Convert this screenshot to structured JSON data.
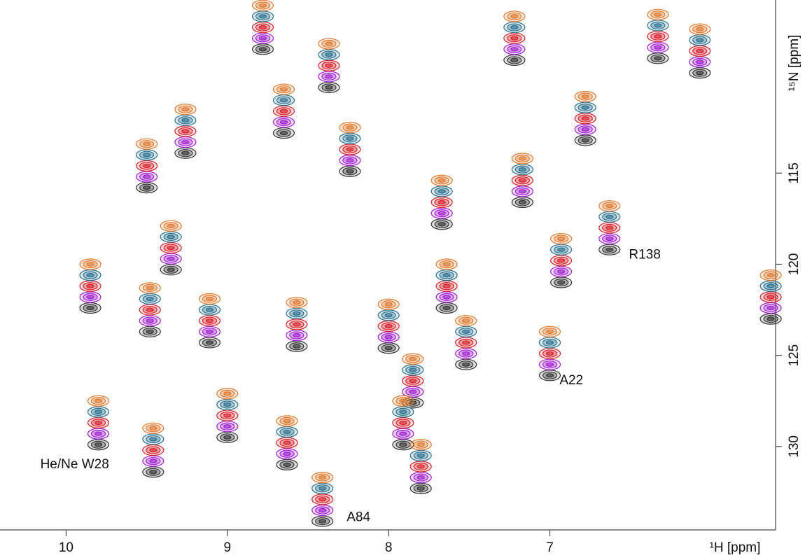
{
  "chart_data": {
    "type": "nmr-overlay",
    "x_label": "¹H [ppm]",
    "y_label": "¹⁵N [ppm]",
    "xlim": [
      10.41,
      5.6
    ],
    "ylim": [
      105.5,
      134.5
    ],
    "xticks": [
      10,
      9,
      8,
      7
    ],
    "yticks": [
      115,
      120,
      125,
      130
    ],
    "x": [
      9.5,
      9.26,
      9.85,
      9.48,
      9.8,
      9.46,
      8.78,
      8.37,
      8.65,
      8.24,
      7.67,
      7.17,
      6.93,
      6.63,
      6.78,
      7.22,
      6.33,
      6.07,
      5.63,
      7.0,
      7.52,
      7.85,
      7.91,
      7.8,
      8.41,
      8.63,
      9.0,
      8.0,
      8.57,
      9.11,
      7.64,
      9.35
    ],
    "series": [
      {
        "color": "#333333",
        "values": [
          115.8,
          113.9,
          122.4,
          123.7,
          129.9,
          131.4,
          108.2,
          110.3,
          112.8,
          114.9,
          117.8,
          116.6,
          121.0,
          119.2,
          113.2,
          108.8,
          108.7,
          109.5,
          123.0,
          126.1,
          125.5,
          127.6,
          129.9,
          132.3,
          134.1,
          131.0,
          129.5,
          124.6,
          124.5,
          124.3,
          122.4,
          120.3
        ]
      },
      {
        "color": "#a020d0",
        "values": [
          115.2,
          113.3,
          121.8,
          123.1,
          129.3,
          130.8,
          107.6,
          109.7,
          112.2,
          114.3,
          117.2,
          116.0,
          120.4,
          118.6,
          112.6,
          108.2,
          108.1,
          108.9,
          122.4,
          125.5,
          124.9,
          127.0,
          129.3,
          131.7,
          133.5,
          130.4,
          128.9,
          124.0,
          123.9,
          123.7,
          121.8,
          119.7
        ]
      },
      {
        "color": "#d8202a",
        "values": [
          114.6,
          112.7,
          121.2,
          122.5,
          128.7,
          130.2,
          107.0,
          109.1,
          111.6,
          113.7,
          116.6,
          115.4,
          119.8,
          118.0,
          112.0,
          107.6,
          107.5,
          108.3,
          121.8,
          124.9,
          124.3,
          126.4,
          128.7,
          131.1,
          132.9,
          129.8,
          128.3,
          123.4,
          123.3,
          123.1,
          121.2,
          119.1
        ]
      },
      {
        "color": "#2a7090",
        "values": [
          114.0,
          112.1,
          120.6,
          121.9,
          128.1,
          129.6,
          106.4,
          108.5,
          111.0,
          113.1,
          116.0,
          114.8,
          119.2,
          117.4,
          111.4,
          107.0,
          106.9,
          107.7,
          121.2,
          124.3,
          123.7,
          125.8,
          128.1,
          130.5,
          132.3,
          129.2,
          127.7,
          122.8,
          122.7,
          122.5,
          120.6,
          118.5
        ]
      },
      {
        "color": "#e07a30",
        "values": [
          113.4,
          111.5,
          120.0,
          121.3,
          127.5,
          129.0,
          105.8,
          107.9,
          110.4,
          112.5,
          115.4,
          114.2,
          118.6,
          116.8,
          110.8,
          106.4,
          106.3,
          107.1,
          120.6,
          123.7,
          123.1,
          125.2,
          127.5,
          129.9,
          131.7,
          128.6,
          127.1,
          122.2,
          122.1,
          121.9,
          120.0,
          117.9
        ]
      }
    ],
    "annotations": [
      {
        "text": "He/Ne W28",
        "x": 10.16,
        "y": 131.0
      },
      {
        "text": "A84",
        "x": 8.26,
        "y": 133.9
      },
      {
        "text": "A22",
        "x": 6.94,
        "y": 126.4
      },
      {
        "text": "R138",
        "x": 6.51,
        "y": 119.5
      }
    ]
  }
}
